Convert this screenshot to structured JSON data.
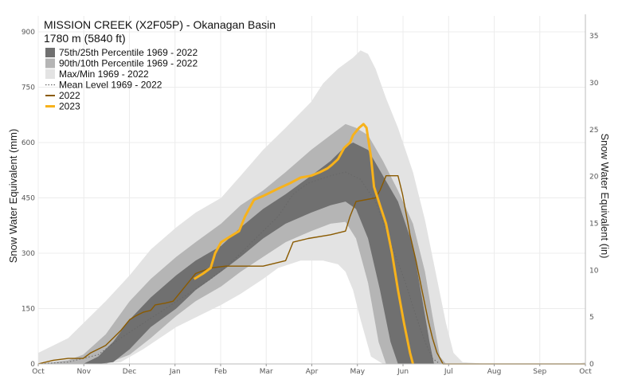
{
  "chart_data": {
    "type": "area",
    "title": "MISSION CREEK (X2F05P) - Okanagan Basin",
    "subtitle": "1780 m (5840 ft)",
    "ylabel_left": "Snow Water Equivalent (mm)",
    "ylabel_right": "Snow Water Equivalent (in)",
    "ylim_mm": [
      0,
      900
    ],
    "yticks_mm": [
      "0",
      "150",
      "300",
      "450",
      "600",
      "750",
      "900"
    ],
    "yticks_in": [
      "0",
      "5",
      "10",
      "15",
      "20",
      "25",
      "30",
      "35"
    ],
    "x_range_days": [
      0,
      365
    ],
    "xtick_labels": [
      "Oct",
      "Nov",
      "Dec",
      "Jan",
      "Feb",
      "Mar",
      "Apr",
      "May",
      "Jun",
      "Jul",
      "Aug",
      "Sep",
      "Oct"
    ],
    "grid": true,
    "legend_position": "top-left",
    "legend": [
      {
        "label": "75th/25th Percentile 1969 - 2022",
        "kind": "box",
        "color": "#707070"
      },
      {
        "label": "90th/10th Percentile 1969 - 2022",
        "kind": "box",
        "color": "#b5b5b5"
      },
      {
        "label": "Max/Min 1969 - 2022",
        "kind": "box",
        "color": "#e3e3e3"
      },
      {
        "label": "Mean Level 1969 - 2022",
        "kind": "dotted",
        "color": "#666666"
      },
      {
        "label": "2022",
        "kind": "line",
        "color": "#8a5a00"
      },
      {
        "label": "2023",
        "kind": "line",
        "color": "#f7b21b"
      }
    ],
    "series": [
      {
        "name": "Max/Min 1969 - 2022",
        "upper": [
          [
            0,
            30
          ],
          [
            20,
            70
          ],
          [
            30,
            110
          ],
          [
            45,
            170
          ],
          [
            61,
            240
          ],
          [
            75,
            310
          ],
          [
            92,
            370
          ],
          [
            105,
            410
          ],
          [
            122,
            450
          ],
          [
            135,
            510
          ],
          [
            150,
            580
          ],
          [
            165,
            640
          ],
          [
            182,
            710
          ],
          [
            190,
            760
          ],
          [
            200,
            800
          ],
          [
            210,
            830
          ],
          [
            215,
            850
          ],
          [
            220,
            840
          ],
          [
            225,
            800
          ],
          [
            232,
            720
          ],
          [
            240,
            640
          ],
          [
            250,
            520
          ],
          [
            258,
            390
          ],
          [
            266,
            230
          ],
          [
            272,
            110
          ],
          [
            277,
            30
          ],
          [
            283,
            5
          ],
          [
            300,
            0
          ],
          [
            360,
            0
          ],
          [
            365,
            5
          ]
        ],
        "lower": [
          [
            0,
            0
          ],
          [
            40,
            0
          ],
          [
            55,
            5
          ],
          [
            70,
            40
          ],
          [
            92,
            100
          ],
          [
            122,
            160
          ],
          [
            135,
            190
          ],
          [
            150,
            230
          ],
          [
            160,
            260
          ],
          [
            175,
            280
          ],
          [
            182,
            280
          ],
          [
            190,
            280
          ],
          [
            200,
            270
          ],
          [
            205,
            250
          ],
          [
            210,
            200
          ],
          [
            215,
            120
          ],
          [
            222,
            20
          ],
          [
            230,
            0
          ],
          [
            365,
            0
          ]
        ],
        "color": "#e3e3e3"
      },
      {
        "name": "90th/10th Percentile 1969 - 2022",
        "upper": [
          [
            0,
            0
          ],
          [
            20,
            10
          ],
          [
            30,
            25
          ],
          [
            45,
            80
          ],
          [
            61,
            170
          ],
          [
            75,
            230
          ],
          [
            92,
            290
          ],
          [
            105,
            330
          ],
          [
            122,
            380
          ],
          [
            135,
            430
          ],
          [
            150,
            470
          ],
          [
            165,
            520
          ],
          [
            182,
            580
          ],
          [
            195,
            620
          ],
          [
            205,
            650
          ],
          [
            212,
            640
          ],
          [
            220,
            620
          ],
          [
            230,
            550
          ],
          [
            240,
            470
          ],
          [
            250,
            380
          ],
          [
            258,
            250
          ],
          [
            263,
            130
          ],
          [
            268,
            20
          ],
          [
            272,
            0
          ],
          [
            365,
            0
          ]
        ],
        "lower": [
          [
            0,
            0
          ],
          [
            45,
            0
          ],
          [
            61,
            25
          ],
          [
            75,
            70
          ],
          [
            92,
            130
          ],
          [
            105,
            170
          ],
          [
            122,
            210
          ],
          [
            135,
            250
          ],
          [
            150,
            290
          ],
          [
            165,
            330
          ],
          [
            182,
            360
          ],
          [
            195,
            380
          ],
          [
            205,
            385
          ],
          [
            212,
            340
          ],
          [
            220,
            220
          ],
          [
            227,
            60
          ],
          [
            232,
            0
          ],
          [
            365,
            0
          ]
        ],
        "color": "#b5b5b5"
      },
      {
        "name": "75th/25th Percentile 1969 - 2022",
        "upper": [
          [
            0,
            0
          ],
          [
            30,
            0
          ],
          [
            40,
            20
          ],
          [
            50,
            60
          ],
          [
            61,
            120
          ],
          [
            75,
            180
          ],
          [
            92,
            240
          ],
          [
            105,
            280
          ],
          [
            122,
            320
          ],
          [
            135,
            370
          ],
          [
            150,
            420
          ],
          [
            165,
            460
          ],
          [
            182,
            510
          ],
          [
            195,
            550
          ],
          [
            205,
            590
          ],
          [
            210,
            600
          ],
          [
            220,
            580
          ],
          [
            230,
            510
          ],
          [
            240,
            440
          ],
          [
            250,
            320
          ],
          [
            256,
            180
          ],
          [
            261,
            60
          ],
          [
            264,
            0
          ],
          [
            365,
            0
          ]
        ],
        "lower": [
          [
            0,
            0
          ],
          [
            40,
            0
          ],
          [
            50,
            5
          ],
          [
            61,
            40
          ],
          [
            75,
            100
          ],
          [
            92,
            150
          ],
          [
            105,
            200
          ],
          [
            122,
            250
          ],
          [
            135,
            290
          ],
          [
            150,
            340
          ],
          [
            165,
            380
          ],
          [
            182,
            410
          ],
          [
            195,
            430
          ],
          [
            205,
            440
          ],
          [
            212,
            420
          ],
          [
            220,
            340
          ],
          [
            228,
            200
          ],
          [
            235,
            60
          ],
          [
            240,
            0
          ],
          [
            365,
            0
          ]
        ],
        "color": "#707070"
      },
      {
        "name": "Mean Level 1969 - 2022",
        "points": [
          [
            0,
            0
          ],
          [
            20,
            5
          ],
          [
            40,
            25
          ],
          [
            55,
            70
          ],
          [
            70,
            110
          ],
          [
            85,
            150
          ],
          [
            100,
            190
          ],
          [
            115,
            230
          ],
          [
            130,
            280
          ],
          [
            145,
            340
          ],
          [
            160,
            400
          ],
          [
            170,
            460
          ],
          [
            180,
            490
          ],
          [
            195,
            510
          ],
          [
            205,
            520
          ],
          [
            215,
            500
          ],
          [
            225,
            440
          ],
          [
            235,
            330
          ],
          [
            245,
            220
          ],
          [
            252,
            130
          ],
          [
            258,
            60
          ],
          [
            263,
            15
          ],
          [
            268,
            0
          ],
          [
            365,
            0
          ]
        ],
        "color": "#666666",
        "style": "dotted"
      },
      {
        "name": "2022",
        "points": [
          [
            0,
            0
          ],
          [
            10,
            10
          ],
          [
            20,
            15
          ],
          [
            30,
            15
          ],
          [
            35,
            30
          ],
          [
            45,
            50
          ],
          [
            55,
            90
          ],
          [
            61,
            120
          ],
          [
            65,
            130
          ],
          [
            70,
            140
          ],
          [
            75,
            145
          ],
          [
            78,
            160
          ],
          [
            85,
            165
          ],
          [
            90,
            170
          ],
          [
            96,
            200
          ],
          [
            100,
            220
          ],
          [
            105,
            245
          ],
          [
            115,
            260
          ],
          [
            125,
            265
          ],
          [
            150,
            265
          ],
          [
            155,
            270
          ],
          [
            165,
            280
          ],
          [
            170,
            330
          ],
          [
            180,
            340
          ],
          [
            195,
            350
          ],
          [
            205,
            360
          ],
          [
            208,
            400
          ],
          [
            212,
            440
          ],
          [
            225,
            450
          ],
          [
            228,
            470
          ],
          [
            232,
            510
          ],
          [
            240,
            510
          ],
          [
            243,
            460
          ],
          [
            248,
            350
          ],
          [
            252,
            280
          ],
          [
            256,
            200
          ],
          [
            260,
            120
          ],
          [
            263,
            70
          ],
          [
            266,
            30
          ],
          [
            270,
            0
          ],
          [
            365,
            0
          ]
        ],
        "color": "#8a5a00"
      },
      {
        "name": "2023",
        "points": [
          [
            104,
            230
          ],
          [
            110,
            245
          ],
          [
            115,
            260
          ],
          [
            118,
            300
          ],
          [
            122,
            330
          ],
          [
            128,
            345
          ],
          [
            134,
            360
          ],
          [
            138,
            400
          ],
          [
            144,
            445
          ],
          [
            150,
            455
          ],
          [
            160,
            475
          ],
          [
            168,
            490
          ],
          [
            175,
            505
          ],
          [
            182,
            510
          ],
          [
            188,
            520
          ],
          [
            193,
            530
          ],
          [
            196,
            540
          ],
          [
            200,
            555
          ],
          [
            202,
            570
          ],
          [
            204,
            585
          ],
          [
            208,
            600
          ],
          [
            210,
            620
          ],
          [
            214,
            640
          ],
          [
            217,
            650
          ],
          [
            219,
            640
          ],
          [
            222,
            560
          ],
          [
            224,
            480
          ],
          [
            228,
            430
          ],
          [
            232,
            380
          ],
          [
            236,
            300
          ],
          [
            240,
            200
          ],
          [
            244,
            110
          ],
          [
            248,
            30
          ],
          [
            250,
            0
          ]
        ],
        "color": "#f7b21b"
      }
    ]
  }
}
